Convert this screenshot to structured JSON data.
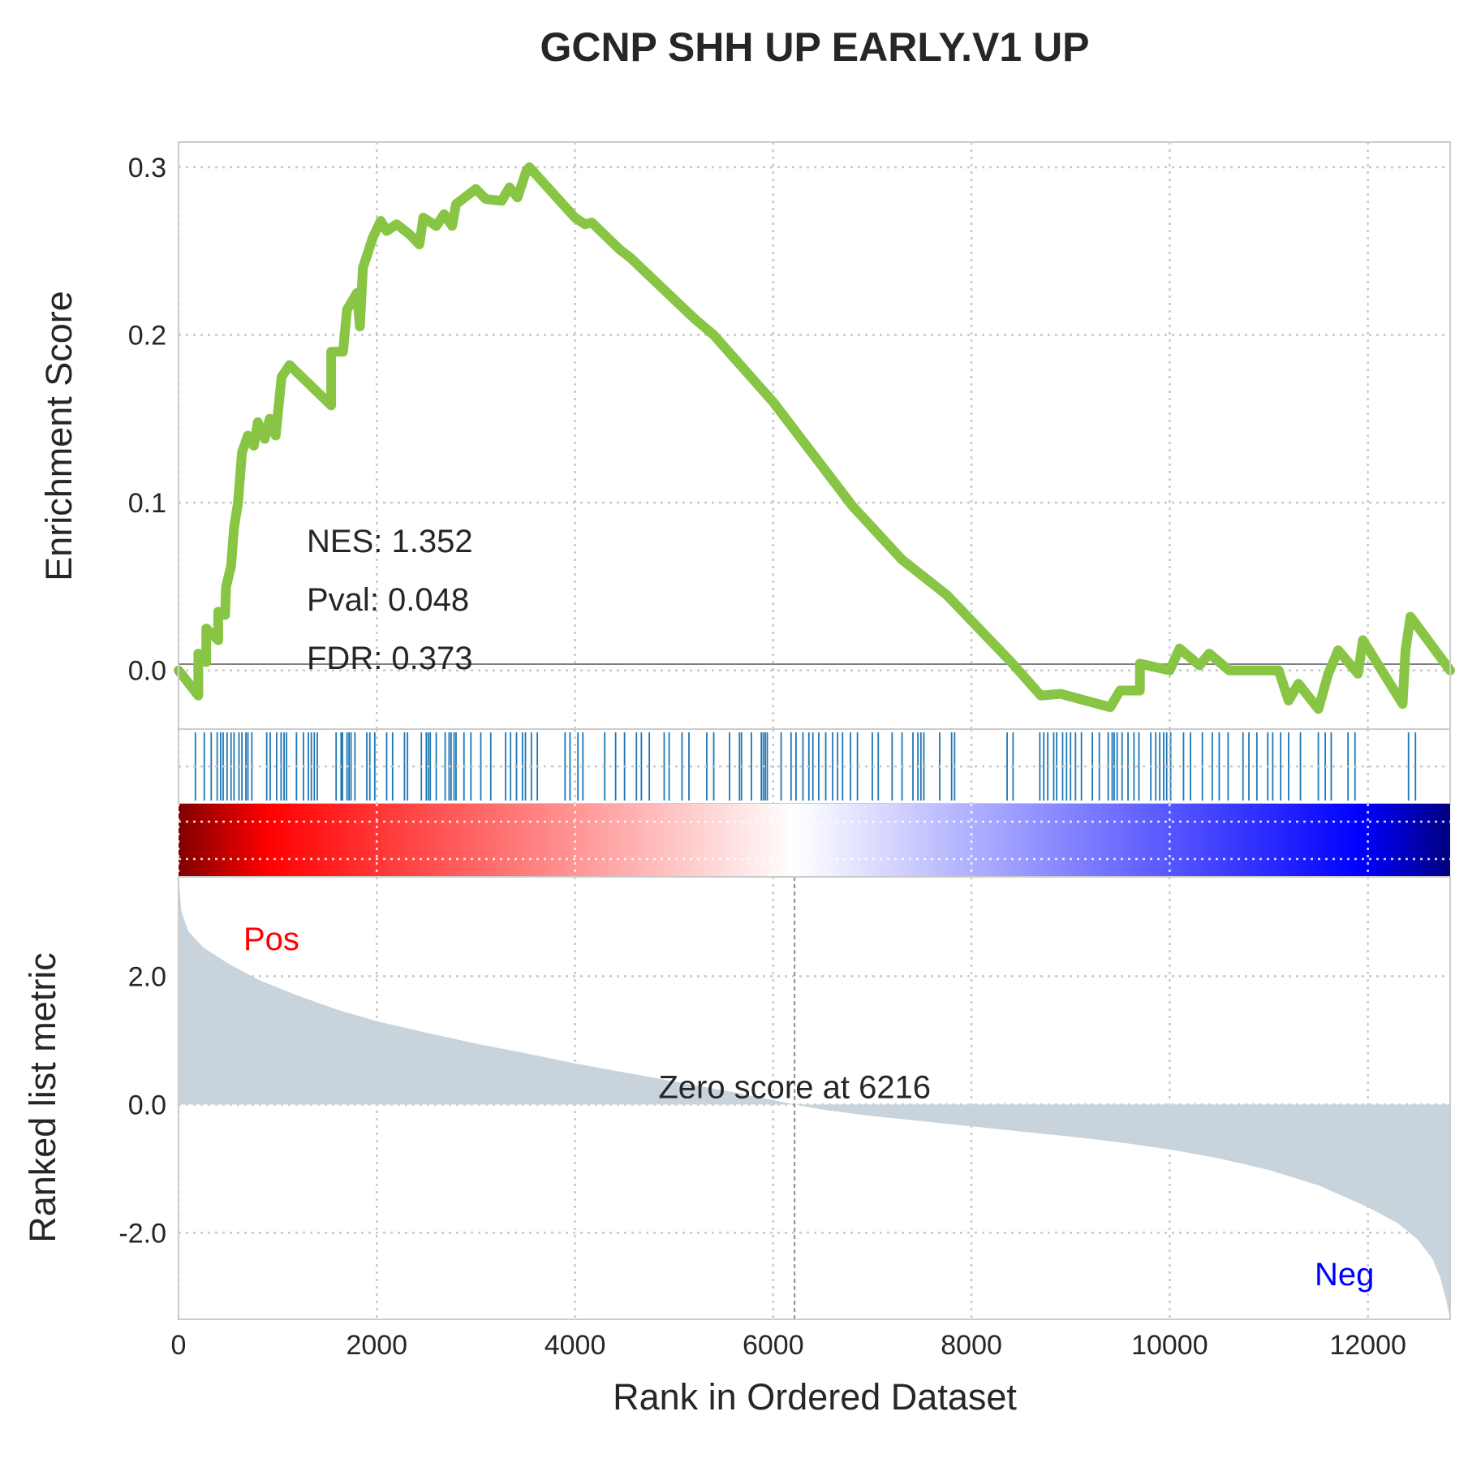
{
  "chart_data": {
    "type": "line",
    "title": "GCNP SHH UP EARLY.V1 UP",
    "xlabel": "Rank in Ordered Dataset",
    "xlim": [
      0,
      12830
    ],
    "xticks": [
      0,
      2000,
      4000,
      6000,
      8000,
      10000,
      12000
    ],
    "grid": true,
    "colors": {
      "es_line": "#88c544",
      "hit_bars": "#1f77b4",
      "metric_fill": "#c8d3dc",
      "pos_label": "#ff0000",
      "neg_label": "#0000ff",
      "heat_low": "#000080",
      "heat_mid": "#ffffff",
      "heat_high": "#800000"
    },
    "enrichment": {
      "ylabel": "Enrichment Score",
      "ylim": [
        -0.035,
        0.315
      ],
      "yticks": [
        0.0,
        0.1,
        0.2,
        0.3
      ],
      "ytick_labels": [
        "0.0",
        "0.1",
        "0.2",
        "0.3"
      ],
      "stats": {
        "nes": "NES: 1.352",
        "pval": "Pval: 0.048",
        "fdr": "FDR: 0.373"
      },
      "running_es": [
        [
          0,
          0.0
        ],
        [
          200,
          -0.015
        ],
        [
          200,
          0.01
        ],
        [
          280,
          0.005
        ],
        [
          280,
          0.025
        ],
        [
          400,
          0.018
        ],
        [
          400,
          0.035
        ],
        [
          470,
          0.033
        ],
        [
          480,
          0.05
        ],
        [
          530,
          0.062
        ],
        [
          560,
          0.085
        ],
        [
          600,
          0.1
        ],
        [
          640,
          0.13
        ],
        [
          700,
          0.14
        ],
        [
          760,
          0.134
        ],
        [
          800,
          0.148
        ],
        [
          870,
          0.138
        ],
        [
          920,
          0.15
        ],
        [
          980,
          0.14
        ],
        [
          1040,
          0.175
        ],
        [
          1120,
          0.182
        ],
        [
          1540,
          0.158
        ],
        [
          1540,
          0.19
        ],
        [
          1660,
          0.19
        ],
        [
          1700,
          0.215
        ],
        [
          1800,
          0.225
        ],
        [
          1830,
          0.205
        ],
        [
          1860,
          0.24
        ],
        [
          1960,
          0.258
        ],
        [
          2040,
          0.268
        ],
        [
          2100,
          0.262
        ],
        [
          2200,
          0.266
        ],
        [
          2330,
          0.26
        ],
        [
          2430,
          0.254
        ],
        [
          2470,
          0.27
        ],
        [
          2600,
          0.265
        ],
        [
          2680,
          0.272
        ],
        [
          2760,
          0.265
        ],
        [
          2800,
          0.278
        ],
        [
          3000,
          0.287
        ],
        [
          3100,
          0.281
        ],
        [
          3260,
          0.28
        ],
        [
          3340,
          0.288
        ],
        [
          3420,
          0.282
        ],
        [
          3510,
          0.298
        ],
        [
          3540,
          0.3
        ],
        [
          4000,
          0.27
        ],
        [
          4100,
          0.266
        ],
        [
          4170,
          0.267
        ],
        [
          4450,
          0.251
        ],
        [
          4560,
          0.246
        ],
        [
          5200,
          0.21
        ],
        [
          5400,
          0.2
        ],
        [
          6000,
          0.16
        ],
        [
          6800,
          0.098
        ],
        [
          7300,
          0.066
        ],
        [
          7750,
          0.045
        ],
        [
          8400,
          0.005
        ],
        [
          8700,
          -0.015
        ],
        [
          8900,
          -0.014
        ],
        [
          9400,
          -0.022
        ],
        [
          9500,
          -0.012
        ],
        [
          9700,
          -0.012
        ],
        [
          9700,
          0.004
        ],
        [
          10000,
          0.0
        ],
        [
          10100,
          0.013
        ],
        [
          10300,
          0.003
        ],
        [
          10400,
          0.01
        ],
        [
          10600,
          0.0
        ],
        [
          11100,
          0.0
        ],
        [
          11200,
          -0.018
        ],
        [
          11300,
          -0.008
        ],
        [
          11500,
          -0.023
        ],
        [
          11600,
          -0.002
        ],
        [
          11700,
          0.012
        ],
        [
          11900,
          -0.002
        ],
        [
          11950,
          0.018
        ],
        [
          12350,
          -0.02
        ],
        [
          12380,
          0.012
        ],
        [
          12430,
          0.032
        ],
        [
          12830,
          0.0
        ]
      ]
    },
    "hits": [
      170,
      260,
      330,
      390,
      425,
      450,
      490,
      530,
      560,
      610,
      640,
      680,
      700,
      740,
      890,
      925,
      990,
      1035,
      1065,
      1090,
      1190,
      1260,
      1310,
      1340,
      1370,
      1400,
      1590,
      1640,
      1655,
      1700,
      1720,
      1740,
      1780,
      1900,
      1930,
      1980,
      2100,
      2160,
      2280,
      2310,
      2450,
      2500,
      2520,
      2540,
      2600,
      2690,
      2730,
      2750,
      2780,
      2800,
      2880,
      2950,
      3050,
      3150,
      3300,
      3350,
      3410,
      3470,
      3500,
      3560,
      3620,
      3900,
      3950,
      4030,
      4080,
      4300,
      4410,
      4500,
      4620,
      4670,
      4750,
      4900,
      4950,
      5080,
      5150,
      5330,
      5400,
      5560,
      5660,
      5680,
      5780,
      5880,
      5900,
      5920,
      5940,
      6080,
      6180,
      6230,
      6300,
      6360,
      6400,
      6460,
      6530,
      6600,
      6650,
      6700,
      6780,
      6850,
      7000,
      7060,
      7200,
      7300,
      7410,
      7460,
      7490,
      7520,
      7680,
      7800,
      7830,
      8360,
      8420,
      8690,
      8730,
      8770,
      8830,
      8860,
      8920,
      8960,
      9000,
      9050,
      9110,
      9220,
      9290,
      9380,
      9420,
      9440,
      9470,
      9520,
      9580,
      9640,
      9690,
      9810,
      9860,
      9900,
      9940,
      9970,
      10010,
      10140,
      10210,
      10330,
      10430,
      10500,
      10590,
      10740,
      10800,
      10880,
      10990,
      11040,
      11120,
      11200,
      11320,
      11500,
      11570,
      11630,
      11800,
      11870,
      12410,
      12480
    ],
    "ranked_metric": {
      "ylabel": "Ranked list metric",
      "ylim": [
        -3.35,
        3.55
      ],
      "yticks": [
        -2.0,
        0.0,
        2.0
      ],
      "ytick_labels": [
        "-2.0",
        "0.0",
        "2.0"
      ],
      "pos_label": "Pos",
      "neg_label": "Neg",
      "zero_cross": 6216,
      "zero_label": "Zero score at 6216",
      "profile": [
        [
          0,
          3.55
        ],
        [
          30,
          3.0
        ],
        [
          100,
          2.7
        ],
        [
          250,
          2.45
        ],
        [
          500,
          2.2
        ],
        [
          800,
          1.95
        ],
        [
          1200,
          1.7
        ],
        [
          1600,
          1.48
        ],
        [
          2000,
          1.3
        ],
        [
          2500,
          1.12
        ],
        [
          3000,
          0.95
        ],
        [
          3500,
          0.8
        ],
        [
          4000,
          0.64
        ],
        [
          4500,
          0.5
        ],
        [
          5000,
          0.36
        ],
        [
          5500,
          0.22
        ],
        [
          6000,
          0.07
        ],
        [
          6216,
          0.0
        ],
        [
          6500,
          -0.08
        ],
        [
          7000,
          -0.18
        ],
        [
          7500,
          -0.26
        ],
        [
          8000,
          -0.34
        ],
        [
          8500,
          -0.42
        ],
        [
          9000,
          -0.5
        ],
        [
          9500,
          -0.59
        ],
        [
          10000,
          -0.7
        ],
        [
          10500,
          -0.84
        ],
        [
          11000,
          -1.02
        ],
        [
          11500,
          -1.26
        ],
        [
          12000,
          -1.6
        ],
        [
          12300,
          -1.85
        ],
        [
          12500,
          -2.1
        ],
        [
          12650,
          -2.4
        ],
        [
          12730,
          -2.7
        ],
        [
          12790,
          -3.05
        ],
        [
          12830,
          -3.35
        ]
      ]
    }
  }
}
